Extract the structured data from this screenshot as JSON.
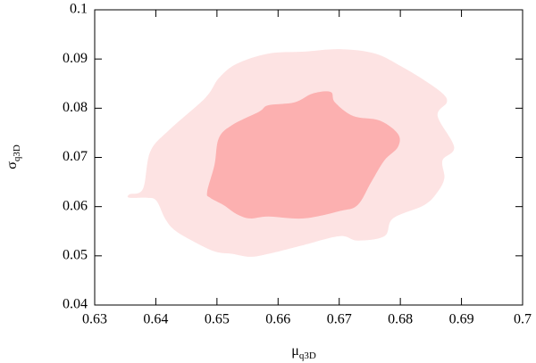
{
  "chart_data": {
    "type": "contour",
    "xlabel": "μ",
    "xlabel_sub": "q3D",
    "ylabel": "σ",
    "ylabel_sub": "q3D",
    "xlim": [
      0.63,
      0.7
    ],
    "xticks": [
      0.63,
      0.64,
      0.65,
      0.66,
      0.67,
      0.68,
      0.69,
      0.7
    ],
    "ylim": [
      0.04,
      0.1
    ],
    "yticks": [
      0.04,
      0.05,
      0.06,
      0.07,
      0.08,
      0.09,
      0.1
    ],
    "series": [
      {
        "color": "#fde3e3",
        "x": [
          0.6357,
          0.6379,
          0.6391,
          0.6423,
          0.6481,
          0.6503,
          0.6532,
          0.6584,
          0.6642,
          0.6701,
          0.6759,
          0.6803,
          0.6839,
          0.6869,
          0.6876,
          0.6861,
          0.6888,
          0.6869,
          0.6872,
          0.6861,
          0.6839,
          0.6788,
          0.6774,
          0.673,
          0.6701,
          0.6642,
          0.6584,
          0.6554,
          0.6525,
          0.6496,
          0.6459,
          0.643,
          0.6415,
          0.6401,
          0.6386,
          0.6357
        ],
        "y": [
          0.0625,
          0.0636,
          0.0712,
          0.0757,
          0.0821,
          0.0861,
          0.089,
          0.0911,
          0.0915,
          0.092,
          0.0911,
          0.0884,
          0.0857,
          0.083,
          0.0812,
          0.0784,
          0.0721,
          0.0694,
          0.0658,
          0.063,
          0.0603,
          0.0576,
          0.054,
          0.0531,
          0.054,
          0.0522,
          0.0504,
          0.0498,
          0.0504,
          0.0509,
          0.0531,
          0.0553,
          0.0576,
          0.0612,
          0.0618,
          0.0618
        ]
      },
      {
        "color": "#fcb0b0",
        "x": [
          0.6484,
          0.6496,
          0.6503,
          0.6525,
          0.6569,
          0.6584,
          0.6627,
          0.6657,
          0.6686,
          0.6693,
          0.6723,
          0.6766,
          0.6796,
          0.6796,
          0.6774,
          0.6752,
          0.673,
          0.6701,
          0.6642,
          0.6584,
          0.6554,
          0.6532,
          0.6511,
          0.6489
        ],
        "y": [
          0.063,
          0.0685,
          0.0739,
          0.0766,
          0.0793,
          0.0806,
          0.0812,
          0.083,
          0.0833,
          0.0812,
          0.0784,
          0.0775,
          0.0748,
          0.0721,
          0.0694,
          0.0649,
          0.0603,
          0.0591,
          0.0576,
          0.058,
          0.0576,
          0.0585,
          0.0603,
          0.0618
        ]
      }
    ]
  }
}
